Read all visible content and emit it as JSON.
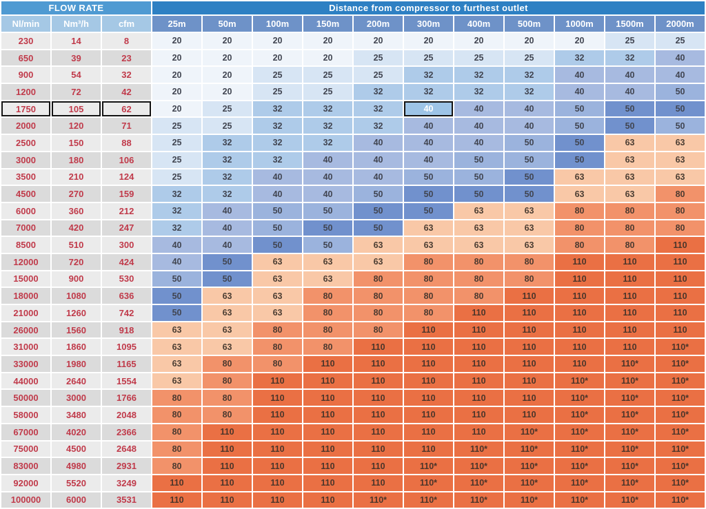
{
  "header": {
    "flow_rate_label": "FLOW RATE",
    "distance_label": "Distance from compressor to furthest outlet"
  },
  "colors": {
    "flow_header_bg": "#4f9ad2",
    "distance_header_bg": "#2e80c3",
    "flow_subheader_bg": "#a5c8e5",
    "distance_subheader_bg": "#6e92c8",
    "row_light_bg": "#ebebeb",
    "row_dark_bg": "#dbdbdb",
    "flow_text": "#c03a4a",
    "cell_text": "#414551",
    "size_20": "#eff4fa",
    "size_25": "#d7e5f4",
    "size_32": "#aecbe9",
    "size_40": "#a7bae0",
    "size_50": "#9bb3dd",
    "size_50_dark": "#7191cd",
    "size_63": "#f9c8a7",
    "size_80": "#f2926a",
    "size_110": "#ea7044",
    "highlight_bg": "#9dc4e7"
  },
  "chart_data": {
    "type": "table",
    "column_groups": [
      {
        "label": "FLOW RATE",
        "span": 3
      },
      {
        "label": "Distance from compressor to furthest outlet",
        "span": 11
      }
    ],
    "flow_columns": [
      "Nl/min",
      "Nm³/h",
      "cfm"
    ],
    "distance_columns": [
      "25m",
      "50m",
      "100m",
      "150m",
      "200m",
      "300m",
      "400m",
      "500m",
      "1000m",
      "1500m",
      "2000m"
    ],
    "rows": [
      {
        "flow": [
          "230",
          "14",
          "8"
        ],
        "sizes": [
          "20",
          "20",
          "20",
          "20",
          "20",
          "20",
          "20",
          "20",
          "20",
          "25",
          "25"
        ]
      },
      {
        "flow": [
          "650",
          "39",
          "23"
        ],
        "sizes": [
          "20",
          "20",
          "20",
          "20",
          "25",
          "25",
          "25",
          "25",
          "32",
          "32",
          "40"
        ]
      },
      {
        "flow": [
          "900",
          "54",
          "32"
        ],
        "sizes": [
          "20",
          "20",
          "25",
          "25",
          "25",
          "32",
          "32",
          "32",
          "40",
          "40",
          "40"
        ]
      },
      {
        "flow": [
          "1200",
          "72",
          "42"
        ],
        "sizes": [
          "20",
          "20",
          "25",
          "25",
          "32",
          "32",
          "32",
          "32",
          "40",
          "40",
          "50"
        ]
      },
      {
        "flow": [
          "1750",
          "105",
          "62"
        ],
        "sizes": [
          "20",
          "25",
          "32",
          "32",
          "32",
          "40",
          "40",
          "40",
          "50",
          "50",
          "50"
        ]
      },
      {
        "flow": [
          "2000",
          "120",
          "71"
        ],
        "sizes": [
          "25",
          "25",
          "32",
          "32",
          "32",
          "40",
          "40",
          "40",
          "50",
          "50",
          "50"
        ]
      },
      {
        "flow": [
          "2500",
          "150",
          "88"
        ],
        "sizes": [
          "25",
          "32",
          "32",
          "32",
          "40",
          "40",
          "40",
          "50",
          "50",
          "63",
          "63"
        ]
      },
      {
        "flow": [
          "3000",
          "180",
          "106"
        ],
        "sizes": [
          "25",
          "32",
          "32",
          "40",
          "40",
          "40",
          "50",
          "50",
          "50",
          "63",
          "63"
        ]
      },
      {
        "flow": [
          "3500",
          "210",
          "124"
        ],
        "sizes": [
          "25",
          "32",
          "40",
          "40",
          "40",
          "50",
          "50",
          "50",
          "63",
          "63",
          "63"
        ]
      },
      {
        "flow": [
          "4500",
          "270",
          "159"
        ],
        "sizes": [
          "32",
          "32",
          "40",
          "40",
          "50",
          "50",
          "50",
          "50",
          "63",
          "63",
          "80"
        ]
      },
      {
        "flow": [
          "6000",
          "360",
          "212"
        ],
        "sizes": [
          "32",
          "40",
          "50",
          "50",
          "50",
          "50",
          "63",
          "63",
          "80",
          "80",
          "80"
        ]
      },
      {
        "flow": [
          "7000",
          "420",
          "247"
        ],
        "sizes": [
          "32",
          "40",
          "50",
          "50",
          "50",
          "63",
          "63",
          "63",
          "80",
          "80",
          "80"
        ]
      },
      {
        "flow": [
          "8500",
          "510",
          "300"
        ],
        "sizes": [
          "40",
          "40",
          "50",
          "50",
          "63",
          "63",
          "63",
          "63",
          "80",
          "80",
          "110"
        ]
      },
      {
        "flow": [
          "12000",
          "720",
          "424"
        ],
        "sizes": [
          "40",
          "50",
          "63",
          "63",
          "63",
          "80",
          "80",
          "80",
          "110",
          "110",
          "110"
        ]
      },
      {
        "flow": [
          "15000",
          "900",
          "530"
        ],
        "sizes": [
          "50",
          "50",
          "63",
          "63",
          "80",
          "80",
          "80",
          "80",
          "110",
          "110",
          "110"
        ]
      },
      {
        "flow": [
          "18000",
          "1080",
          "636"
        ],
        "sizes": [
          "50",
          "63",
          "63",
          "80",
          "80",
          "80",
          "80",
          "110",
          "110",
          "110",
          "110"
        ]
      },
      {
        "flow": [
          "21000",
          "1260",
          "742"
        ],
        "sizes": [
          "50",
          "63",
          "63",
          "80",
          "80",
          "80",
          "110",
          "110",
          "110",
          "110",
          "110"
        ]
      },
      {
        "flow": [
          "26000",
          "1560",
          "918"
        ],
        "sizes": [
          "63",
          "63",
          "80",
          "80",
          "80",
          "110",
          "110",
          "110",
          "110",
          "110",
          "110"
        ]
      },
      {
        "flow": [
          "31000",
          "1860",
          "1095"
        ],
        "sizes": [
          "63",
          "63",
          "80",
          "80",
          "110",
          "110",
          "110",
          "110",
          "110",
          "110",
          "110*"
        ]
      },
      {
        "flow": [
          "33000",
          "1980",
          "1165"
        ],
        "sizes": [
          "63",
          "80",
          "80",
          "110",
          "110",
          "110",
          "110",
          "110",
          "110",
          "110*",
          "110*"
        ]
      },
      {
        "flow": [
          "44000",
          "2640",
          "1554"
        ],
        "sizes": [
          "63",
          "80",
          "110",
          "110",
          "110",
          "110",
          "110",
          "110",
          "110*",
          "110*",
          "110*"
        ]
      },
      {
        "flow": [
          "50000",
          "3000",
          "1766"
        ],
        "sizes": [
          "80",
          "80",
          "110",
          "110",
          "110",
          "110",
          "110",
          "110",
          "110*",
          "110*",
          "110*"
        ]
      },
      {
        "flow": [
          "58000",
          "3480",
          "2048"
        ],
        "sizes": [
          "80",
          "80",
          "110",
          "110",
          "110",
          "110",
          "110",
          "110",
          "110*",
          "110*",
          "110*"
        ]
      },
      {
        "flow": [
          "67000",
          "4020",
          "2366"
        ],
        "sizes": [
          "80",
          "110",
          "110",
          "110",
          "110",
          "110",
          "110",
          "110*",
          "110*",
          "110*",
          "110*"
        ]
      },
      {
        "flow": [
          "75000",
          "4500",
          "2648"
        ],
        "sizes": [
          "80",
          "110",
          "110",
          "110",
          "110",
          "110",
          "110*",
          "110*",
          "110*",
          "110*",
          "110*"
        ]
      },
      {
        "flow": [
          "83000",
          "4980",
          "2931"
        ],
        "sizes": [
          "80",
          "110",
          "110",
          "110",
          "110",
          "110*",
          "110*",
          "110*",
          "110*",
          "110*",
          "110*"
        ]
      },
      {
        "flow": [
          "92000",
          "5520",
          "3249"
        ],
        "sizes": [
          "110",
          "110",
          "110",
          "110",
          "110",
          "110*",
          "110*",
          "110*",
          "110*",
          "110*",
          "110*"
        ]
      },
      {
        "flow": [
          "100000",
          "6000",
          "3531"
        ],
        "sizes": [
          "110",
          "110",
          "110",
          "110",
          "110*",
          "110*",
          "110*",
          "110*",
          "110*",
          "110*",
          "110*"
        ]
      }
    ],
    "highlight": {
      "flow_row_index": 4,
      "cell_row_index": 4,
      "cell_col_index": 5,
      "cell_value": "40"
    }
  },
  "presentation": {
    "dark_50_cells": [
      [
        4,
        9
      ],
      [
        4,
        10
      ],
      [
        5,
        9
      ],
      [
        6,
        8
      ],
      [
        7,
        8
      ],
      [
        8,
        7
      ],
      [
        9,
        5
      ],
      [
        9,
        6
      ],
      [
        9,
        7
      ],
      [
        10,
        4
      ],
      [
        10,
        5
      ],
      [
        11,
        3
      ],
      [
        11,
        4
      ],
      [
        12,
        2
      ],
      [
        13,
        1
      ],
      [
        14,
        1
      ],
      [
        15,
        0
      ],
      [
        16,
        0
      ]
    ]
  }
}
